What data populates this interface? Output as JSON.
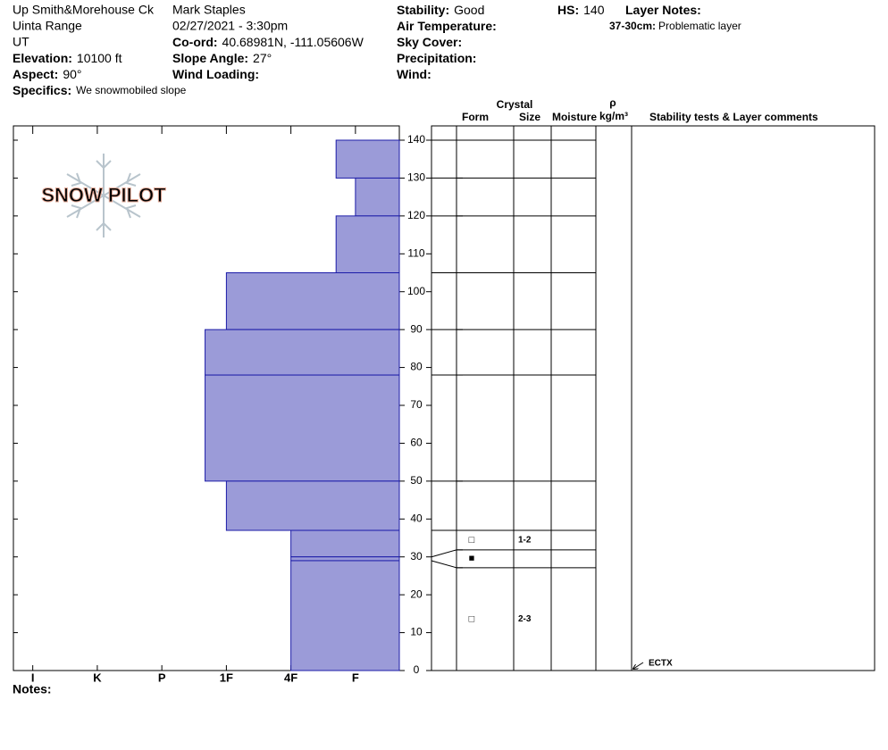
{
  "header": {
    "location": "Up Smith&Morehouse Ck",
    "range": "Uinta Range",
    "state": "UT",
    "observer": "Mark Staples",
    "date": "02/27/2021 - 3:30pm",
    "fields": [
      {
        "label": "Elevation:",
        "value": "10100 ft"
      },
      {
        "label": "Aspect:",
        "value": "90°"
      },
      {
        "label": "Specifics:",
        "value": "We snowmobiled slope"
      },
      {
        "label": "Co-ord:",
        "value": "40.68981N, -111.05606W"
      },
      {
        "label": "Slope Angle:",
        "value": "27°"
      },
      {
        "label": "Wind Loading:"
      },
      {
        "label": "Stability:",
        "value": "Good"
      },
      {
        "label": "Air Temperature:"
      },
      {
        "label": "Sky Cover:"
      },
      {
        "label": "Precipitation:"
      },
      {
        "label": "Wind:"
      },
      {
        "label": "HS:",
        "value": 140
      },
      {
        "label": "Layer Notes:"
      }
    ],
    "layer_notes": [
      {
        "label": "37-30cm:",
        "value": "Problematic layer"
      }
    ]
  },
  "logo": "SNOW PILOT",
  "notes_label": "Notes:",
  "chart_data": {
    "type": "snow-profile",
    "color": "#9b9bd8",
    "edge_color": "#1c1ca8",
    "ylim": [
      0,
      140
    ],
    "yticks": [
      0,
      10,
      20,
      30,
      40,
      50,
      60,
      70,
      80,
      90,
      100,
      110,
      120,
      130,
      140
    ],
    "xlim": [
      6.3,
      0.32
    ],
    "xticks": [
      {
        "value": 6,
        "label": "I"
      },
      {
        "value": 5,
        "label": "K"
      },
      {
        "value": 4,
        "label": "P"
      },
      {
        "value": 3,
        "label": "1F"
      },
      {
        "value": 2,
        "label": "4F"
      },
      {
        "value": 1,
        "label": "F"
      }
    ],
    "columns": {
      "crystal": "Crystal",
      "form": "Form",
      "size": "Size",
      "moisture": "Moisture",
      "rho": "ρ",
      "density_unit": "kg/m³",
      "comments": "Stability tests & Layer comments"
    },
    "layers": [
      {
        "top": 140,
        "bottom": 130,
        "hardness": 1.3
      },
      {
        "top": 130,
        "bottom": 120,
        "hardness": 1
      },
      {
        "top": 120,
        "bottom": 105,
        "hardness": 1.3
      },
      {
        "top": 105,
        "bottom": 90,
        "hardness": 3
      },
      {
        "top": 90,
        "bottom": 78,
        "hardness": 3.33
      },
      {
        "top": 78,
        "bottom": 50,
        "hardness": 3.33
      },
      {
        "top": 50,
        "bottom": 37,
        "hardness": 3
      },
      {
        "top": 37,
        "bottom": 30,
        "hardness": 2,
        "form": "□",
        "size": "1-2"
      },
      {
        "top": 30,
        "bottom": 29,
        "hardness": 2,
        "form": "■"
      },
      {
        "top": 29,
        "bottom": 0,
        "hardness": 2,
        "form": "□",
        "size": "2-3"
      }
    ],
    "stability_tests": [
      {
        "depth": 0,
        "label": "ECTX"
      }
    ]
  }
}
